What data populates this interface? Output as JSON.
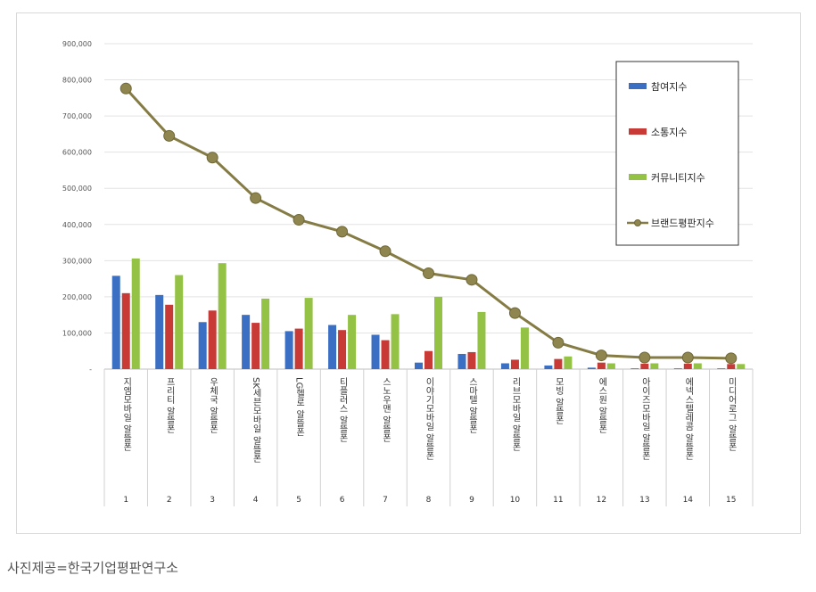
{
  "chart_data": {
    "type": "bar",
    "title": "",
    "xlabel": "",
    "ylabel": "",
    "ylim": [
      0,
      900000
    ],
    "yticks": [
      "-",
      "100,000",
      "200,000",
      "300,000",
      "400,000",
      "500,000",
      "600,000",
      "700,000",
      "800,000",
      "900,000"
    ],
    "grid": true,
    "legend_position": "top-right",
    "categories": [
      "지엠모바일 알뜰폰",
      "프리티 알뜰폰",
      "우체국 알뜰폰",
      "SK세븐모바일 알뜰폰",
      "LG헬로 알뜰폰",
      "티플러스 알뜰폰",
      "스노우맨 알뜰폰",
      "이야기모바일 알뜰폰",
      "스마텔 알뜰폰",
      "리브모바일 알뜰폰",
      "모빙 알뜰폰",
      "에스원 알뜰폰",
      "아이즈모바일 알뜰폰",
      "에넥스텔레콤 알뜰폰",
      "미디어로그 알뜰폰"
    ],
    "ranks": [
      "1",
      "2",
      "3",
      "4",
      "5",
      "6",
      "7",
      "8",
      "9",
      "10",
      "11",
      "12",
      "13",
      "14",
      "15"
    ],
    "series": [
      {
        "name": "참여지수",
        "type": "bar",
        "color": "#3b6fc4",
        "values": [
          258000,
          205000,
          130000,
          150000,
          105000,
          122000,
          95000,
          18000,
          42000,
          16000,
          10000,
          4000,
          2000,
          2000,
          2000
        ]
      },
      {
        "name": "소통지수",
        "type": "bar",
        "color": "#c83a36",
        "values": [
          210000,
          178000,
          162000,
          128000,
          112000,
          108000,
          80000,
          50000,
          47000,
          26000,
          28000,
          18000,
          15000,
          15000,
          14000
        ]
      },
      {
        "name": "커뮤니티지수",
        "type": "bar",
        "color": "#94c245",
        "values": [
          306000,
          260000,
          293000,
          195000,
          197000,
          150000,
          152000,
          200000,
          158000,
          115000,
          35000,
          16000,
          16000,
          16000,
          14000
        ]
      },
      {
        "name": "브랜드평판지수",
        "type": "line",
        "color": "#857b44",
        "values": [
          776000,
          645000,
          585000,
          473000,
          413000,
          380000,
          326000,
          265000,
          247000,
          155000,
          73000,
          38000,
          32000,
          32000,
          30000
        ]
      }
    ]
  },
  "caption": "사진제공=한국기업평판연구소"
}
